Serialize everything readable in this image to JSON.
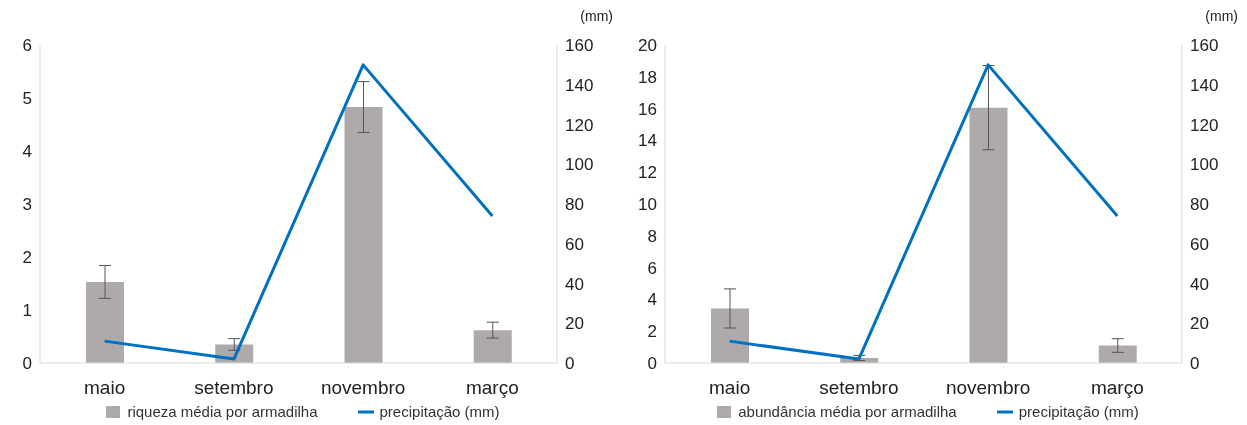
{
  "chart_data": [
    {
      "type": "bar",
      "categories": [
        "maio",
        "setembro",
        "novembro",
        "março"
      ],
      "series": [
        {
          "name": "riqueza média por armadilha",
          "color": "#aeaaaa",
          "values": [
            1.53,
            0.35,
            4.83,
            0.62
          ],
          "errors": [
            0.31,
            0.11,
            0.48,
            0.15
          ]
        },
        {
          "name": "precipitação (mm)",
          "type": "line",
          "axis": "y2",
          "color": "#0070c0",
          "values": [
            11,
            2,
            150,
            74
          ]
        }
      ],
      "ylim": [
        0,
        6
      ],
      "yticks": [
        0,
        1,
        2,
        3,
        4,
        5,
        6
      ],
      "y2lim": [
        0,
        160
      ],
      "y2ticks": [
        0,
        20,
        40,
        60,
        80,
        100,
        120,
        140,
        160
      ],
      "y2label": "(mm)",
      "legend": "bottom",
      "marker": "none"
    },
    {
      "type": "bar",
      "categories": [
        "maio",
        "setembro",
        "novembro",
        "março"
      ],
      "series": [
        {
          "name": "abundância média por armadilha",
          "color": "#aeaaaa",
          "values": [
            3.43,
            0.32,
            16.06,
            1.1
          ],
          "errors": [
            1.23,
            0.16,
            2.65,
            0.43
          ]
        },
        {
          "name": "precipitação (mm)",
          "type": "line",
          "axis": "y2",
          "color": "#0070c0",
          "values": [
            11,
            2,
            150,
            74
          ]
        }
      ],
      "ylim": [
        0,
        20
      ],
      "yticks": [
        0,
        2,
        4,
        6,
        8,
        10,
        12,
        14,
        16,
        18,
        20
      ],
      "y2lim": [
        0,
        160
      ],
      "y2ticks": [
        0,
        20,
        40,
        60,
        80,
        100,
        120,
        140,
        160
      ],
      "y2label": "(mm)",
      "legend": "bottom",
      "marker": "none"
    }
  ]
}
